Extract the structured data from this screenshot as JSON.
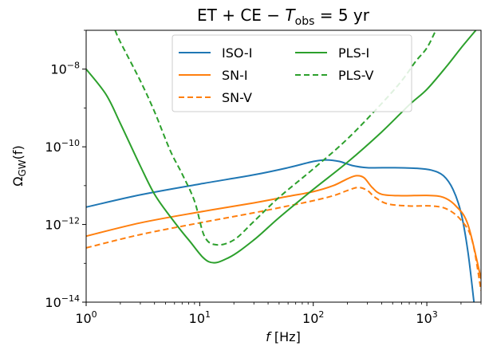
{
  "chart_data": {
    "type": "line",
    "title": {
      "main": "ET + CE − ",
      "var": "T",
      "sub": "obs",
      "rest": " = 5 yr"
    },
    "xlabel": {
      "var": "f",
      "unit": " [Hz]"
    },
    "ylabel": {
      "base": "Ω",
      "sub": "GW",
      "rest": "(f)"
    },
    "xscale": "log",
    "yscale": "log",
    "xlim": [
      1,
      3000
    ],
    "ylim": [
      1e-14,
      1e-07
    ],
    "xticks": [
      {
        "value": 1,
        "base": "10",
        "exp": "0"
      },
      {
        "value": 10,
        "base": "10",
        "exp": "1"
      },
      {
        "value": 100,
        "base": "10",
        "exp": "2"
      },
      {
        "value": 1000,
        "base": "10",
        "exp": "3"
      }
    ],
    "yticks": [
      {
        "value": 1e-14,
        "base": "10",
        "exp": "−14"
      },
      {
        "value": 1e-12,
        "base": "10",
        "exp": "−12"
      },
      {
        "value": 1e-10,
        "base": "10",
        "exp": "−10"
      },
      {
        "value": 1e-08,
        "base": "10",
        "exp": "−8"
      }
    ],
    "legend": {
      "placement": "top-center",
      "columns": 2,
      "order": [
        0,
        3,
        1,
        4,
        2
      ]
    },
    "grid": false,
    "series": [
      {
        "name": "ISO-I",
        "color": "#1f77b4",
        "dash": "solid",
        "points": [
          [
            1,
            2.8e-12
          ],
          [
            3,
            5.8e-12
          ],
          [
            10,
            1.1e-11
          ],
          [
            30,
            1.9e-11
          ],
          [
            60,
            2.9e-11
          ],
          [
            100,
            4.2e-11
          ],
          [
            130,
            4.6e-11
          ],
          [
            170,
            4.2e-11
          ],
          [
            220,
            3.3e-11
          ],
          [
            300,
            2.9e-11
          ],
          [
            500,
            2.9e-11
          ],
          [
            800,
            2.8e-11
          ],
          [
            1100,
            2.5e-11
          ],
          [
            1400,
            1.8e-11
          ],
          [
            1700,
            8e-12
          ],
          [
            2000,
            2e-12
          ],
          [
            2300,
            2e-13
          ],
          [
            2600,
            1e-14
          ]
        ]
      },
      {
        "name": "SN-I",
        "color": "#ff7f0e",
        "dash": "solid",
        "points": [
          [
            1,
            5e-13
          ],
          [
            3,
            1.1e-12
          ],
          [
            10,
            2.1e-12
          ],
          [
            30,
            3.6e-12
          ],
          [
            60,
            5.3e-12
          ],
          [
            100,
            7e-12
          ],
          [
            150,
            1e-11
          ],
          [
            200,
            1.5e-11
          ],
          [
            240,
            1.8e-11
          ],
          [
            280,
            1.6e-11
          ],
          [
            330,
            9e-12
          ],
          [
            400,
            6e-12
          ],
          [
            600,
            5.5e-12
          ],
          [
            1000,
            5.6e-12
          ],
          [
            1400,
            5e-12
          ],
          [
            1800,
            3e-12
          ],
          [
            2300,
            1e-12
          ],
          [
            3000,
            4e-14
          ]
        ]
      },
      {
        "name": "SN-V",
        "color": "#ff7f0e",
        "dash": "dashed",
        "points": [
          [
            1,
            2.5e-13
          ],
          [
            3,
            5.5e-13
          ],
          [
            10,
            1.1e-12
          ],
          [
            30,
            2e-12
          ],
          [
            60,
            3e-12
          ],
          [
            100,
            4.1e-12
          ],
          [
            150,
            5.5e-12
          ],
          [
            200,
            7.5e-12
          ],
          [
            250,
            9e-12
          ],
          [
            300,
            7.5e-12
          ],
          [
            350,
            5e-12
          ],
          [
            450,
            3.4e-12
          ],
          [
            700,
            3e-12
          ],
          [
            1100,
            3e-12
          ],
          [
            1500,
            2.5e-12
          ],
          [
            2000,
            1.3e-12
          ],
          [
            2500,
            4e-13
          ],
          [
            3000,
            2e-14
          ]
        ]
      },
      {
        "name": "PLS-I",
        "color": "#2ca02c",
        "dash": "solid",
        "points": [
          [
            1,
            1e-08
          ],
          [
            1.5,
            2.2e-09
          ],
          [
            2,
            4e-10
          ],
          [
            3,
            3.2e-11
          ],
          [
            4,
            6e-12
          ],
          [
            5.5,
            1.6e-12
          ],
          [
            8,
            4e-13
          ],
          [
            12,
            1.1e-13
          ],
          [
            18,
            1.4e-13
          ],
          [
            30,
            4e-13
          ],
          [
            50,
            1.5e-12
          ],
          [
            100,
            8e-12
          ],
          [
            200,
            4e-11
          ],
          [
            400,
            2.4e-10
          ],
          [
            700,
            1.2e-09
          ],
          [
            1000,
            3e-09
          ],
          [
            1500,
            1.2e-08
          ],
          [
            2000,
            3.5e-08
          ],
          [
            2700,
            1e-07
          ]
        ]
      },
      {
        "name": "PLS-V",
        "color": "#2ca02c",
        "dash": "dashed",
        "points": [
          [
            1.8,
            1e-07
          ],
          [
            2,
            5e-08
          ],
          [
            3,
            5e-09
          ],
          [
            4,
            8e-10
          ],
          [
            5.5,
            8e-11
          ],
          [
            7,
            2e-11
          ],
          [
            9,
            4e-12
          ],
          [
            11,
            5e-13
          ],
          [
            14,
            3e-13
          ],
          [
            20,
            4e-13
          ],
          [
            30,
            1.2e-12
          ],
          [
            50,
            5e-12
          ],
          [
            100,
            2.7e-11
          ],
          [
            200,
            1.6e-10
          ],
          [
            400,
            1.3e-09
          ],
          [
            600,
            5e-09
          ],
          [
            800,
            1.6e-08
          ],
          [
            1000,
            3.5e-08
          ],
          [
            1200,
            1e-07
          ]
        ]
      }
    ]
  }
}
